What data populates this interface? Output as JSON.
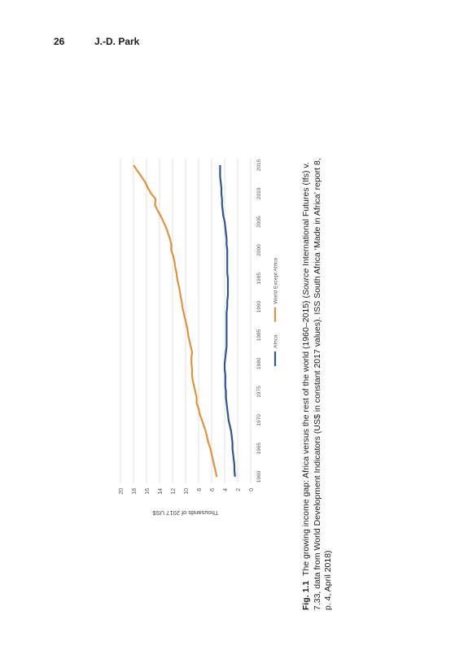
{
  "header": {
    "page_number": "26",
    "author": "J.-D.  Park"
  },
  "chart_data": {
    "type": "line",
    "title": "",
    "xlabel": "",
    "ylabel": "Thousands of 2017 US$",
    "x": [
      1960,
      1961,
      1962,
      1963,
      1964,
      1965,
      1966,
      1967,
      1968,
      1969,
      1970,
      1971,
      1972,
      1973,
      1974,
      1975,
      1976,
      1977,
      1978,
      1979,
      1980,
      1981,
      1982,
      1983,
      1984,
      1985,
      1986,
      1987,
      1988,
      1989,
      1990,
      1991,
      1992,
      1993,
      1994,
      1995,
      1996,
      1997,
      1998,
      1999,
      2000,
      2001,
      2002,
      2003,
      2004,
      2005,
      2006,
      2007,
      2008,
      2009,
      2010,
      2011,
      2012,
      2013,
      2014,
      2015
    ],
    "xticks": [
      1960,
      1965,
      1970,
      1975,
      1980,
      1985,
      1990,
      1995,
      2000,
      2005,
      2010,
      2015
    ],
    "ylim": [
      0,
      20
    ],
    "yticks": [
      0,
      2,
      4,
      6,
      8,
      10,
      12,
      14,
      16,
      18,
      20
    ],
    "grid": true,
    "legend_position": "bottom",
    "series": [
      {
        "name": "Africa",
        "color": "#2f5597",
        "values": [
          2.4,
          2.5,
          2.5,
          2.6,
          2.7,
          2.8,
          2.8,
          2.9,
          3.0,
          3.2,
          3.4,
          3.5,
          3.6,
          3.7,
          3.8,
          3.8,
          3.9,
          3.9,
          3.9,
          4.0,
          4.0,
          3.9,
          3.8,
          3.7,
          3.7,
          3.7,
          3.7,
          3.7,
          3.7,
          3.7,
          3.6,
          3.6,
          3.5,
          3.5,
          3.5,
          3.5,
          3.6,
          3.6,
          3.6,
          3.6,
          3.6,
          3.7,
          3.7,
          3.8,
          3.9,
          4.0,
          4.2,
          4.3,
          4.4,
          4.4,
          4.5,
          4.5,
          4.6,
          4.7,
          4.7,
          4.7
        ]
      },
      {
        "name": "World Except Africa",
        "color": "#e0933a",
        "values": [
          5.2,
          5.4,
          5.6,
          5.8,
          6.0,
          6.2,
          6.5,
          6.7,
          6.9,
          7.2,
          7.5,
          7.8,
          8.0,
          8.3,
          8.3,
          8.5,
          8.7,
          8.9,
          9.0,
          9.0,
          9.1,
          9.1,
          9.0,
          9.2,
          9.4,
          9.6,
          9.7,
          9.9,
          10.1,
          10.3,
          10.5,
          10.6,
          10.8,
          10.9,
          11.1,
          11.3,
          11.4,
          11.6,
          11.7,
          11.9,
          12.2,
          12.2,
          12.4,
          12.7,
          13.0,
          13.4,
          13.8,
          14.3,
          14.7,
          14.6,
          15.3,
          15.8,
          16.2,
          16.8,
          17.4,
          18.0
        ]
      }
    ]
  },
  "caption": {
    "label": "Fig. 1.1",
    "line1_a": "The growing income gap: Africa versus the rest of the world (1960–2015) (",
    "source_word": "Source",
    "line1_b": " International Futures (Ifs) v.",
    "line2": "7.33, data from World Development Indicators (US$ in constant 2017 values). ISS South Africa ‘Made in Africa’ report 8,",
    "line3": "p. 4, April 2018)"
  }
}
